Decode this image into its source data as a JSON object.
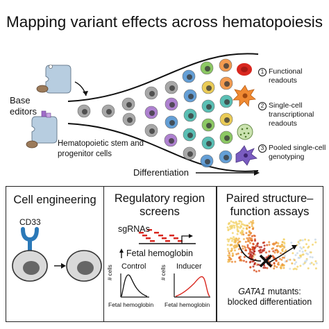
{
  "title": "Mapping variant effects across hematopoiesis",
  "top": {
    "base_editors": "Base editors",
    "hspc": "Hematopoietic stem and progenitor cells",
    "differentiation": "Differentiation",
    "readouts": [
      {
        "num": "1",
        "text": "Functional readouts"
      },
      {
        "num": "2",
        "text": "Single-cell transcriptional readouts"
      },
      {
        "num": "3",
        "text": "Pooled single-cell genotyping"
      }
    ]
  },
  "panels": {
    "cell_engineering": {
      "title": "Cell engineering",
      "marker": "CD33"
    },
    "regulatory": {
      "title": "Regulatory region screens",
      "sgrnas": "sgRNAs",
      "fetal": "Fetal hemoglobin",
      "control": "Control",
      "inducer": "Inducer",
      "ylabel": "# cells",
      "xlabel": "Fetal hemoglobin"
    },
    "paired": {
      "title": "Paired structure–function assays",
      "gene": "GATA1",
      "caption_rest": "mutants:",
      "caption_line2": "blocked differentiation"
    }
  },
  "colors": {
    "cell_gray": "#9a9a9a",
    "purple": "#a06cc8",
    "blue": "#4a8fd0",
    "teal": "#3eb5a8",
    "green": "#79bf4a",
    "yellow": "#e7c33a",
    "orange": "#f08a32",
    "red": "#d9271f",
    "editor_blue": "#b7cde0",
    "cd33": "#2b79b8"
  }
}
